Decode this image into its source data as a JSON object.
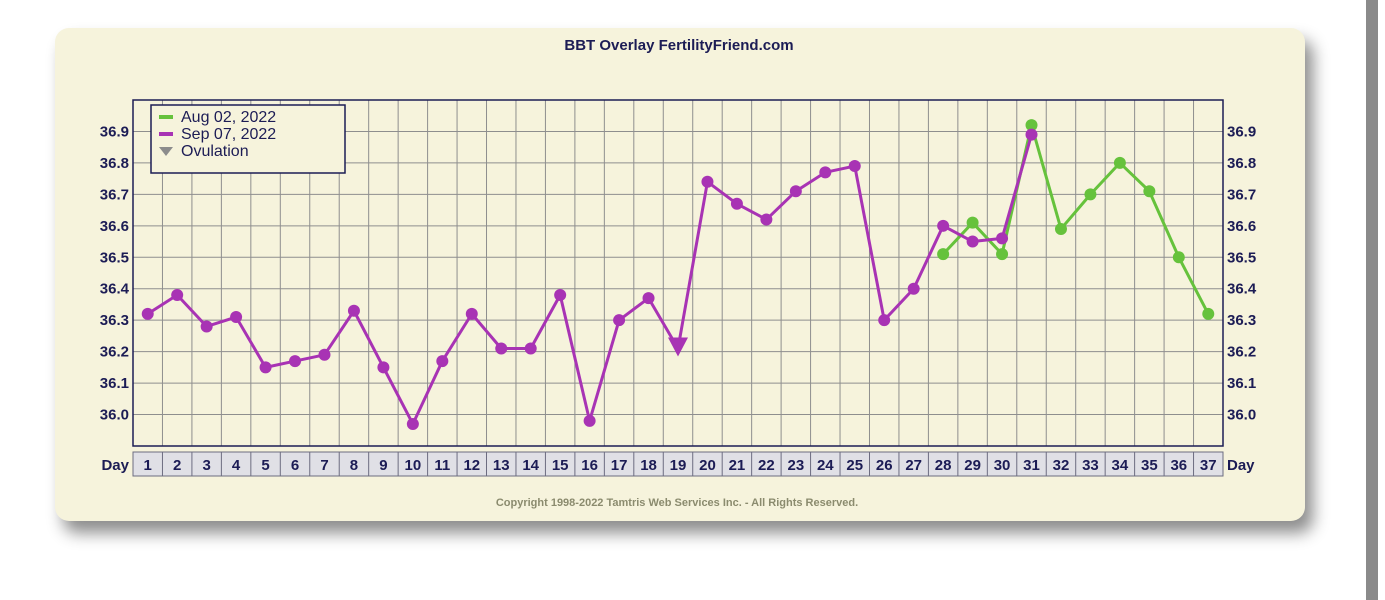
{
  "chart_data": {
    "type": "line",
    "title": "BBT Overlay FertilityFriend.com",
    "copyright": "Copyright 1998-2022 Tamtris Web Services Inc. - All Rights Reserved.",
    "xlabel": "Day",
    "x": [
      1,
      2,
      3,
      4,
      5,
      6,
      7,
      8,
      9,
      10,
      11,
      12,
      13,
      14,
      15,
      16,
      17,
      18,
      19,
      20,
      21,
      22,
      23,
      24,
      25,
      26,
      27,
      28,
      29,
      30,
      31,
      32,
      33,
      34,
      35,
      36,
      37
    ],
    "ylim": [
      35.9,
      37.0
    ],
    "yticks": [
      "36.0",
      "36.1",
      "36.2",
      "36.3",
      "36.4",
      "36.5",
      "36.6",
      "36.7",
      "36.8",
      "36.9"
    ],
    "grid": true,
    "legend_position": "top-left",
    "series": [
      {
        "name": "Aug 02, 2022",
        "color": "#66c23c",
        "points": [
          [
            28,
            36.51
          ],
          [
            29,
            36.61
          ],
          [
            30,
            36.51
          ],
          [
            31,
            36.92
          ],
          [
            32,
            36.59
          ],
          [
            33,
            36.7
          ],
          [
            34,
            36.8
          ],
          [
            35,
            36.71
          ],
          [
            36,
            36.5
          ],
          [
            37,
            36.32
          ]
        ]
      },
      {
        "name": "Sep 07, 2022",
        "color": "#a833b4",
        "points": [
          [
            1,
            36.32
          ],
          [
            2,
            36.38
          ],
          [
            3,
            36.28
          ],
          [
            4,
            36.31
          ],
          [
            5,
            36.15
          ],
          [
            6,
            36.17
          ],
          [
            7,
            36.19
          ],
          [
            8,
            36.33
          ],
          [
            9,
            36.15
          ],
          [
            10,
            35.97
          ],
          [
            11,
            36.17
          ],
          [
            12,
            36.32
          ],
          [
            13,
            36.21
          ],
          [
            14,
            36.21
          ],
          [
            15,
            36.38
          ],
          [
            16,
            35.98
          ],
          [
            17,
            36.3
          ],
          [
            18,
            36.37
          ],
          [
            19,
            36.21
          ],
          [
            20,
            36.74
          ],
          [
            21,
            36.67
          ],
          [
            22,
            36.62
          ],
          [
            23,
            36.71
          ],
          [
            24,
            36.77
          ],
          [
            25,
            36.79
          ],
          [
            26,
            36.3
          ],
          [
            27,
            36.4
          ],
          [
            28,
            36.6
          ],
          [
            29,
            36.55
          ],
          [
            30,
            36.56
          ],
          [
            31,
            36.89
          ]
        ],
        "ovulation_day": 19
      }
    ],
    "legend": {
      "ovulation_label": "Ovulation",
      "ovulation_color": "#8c8c8c"
    }
  }
}
